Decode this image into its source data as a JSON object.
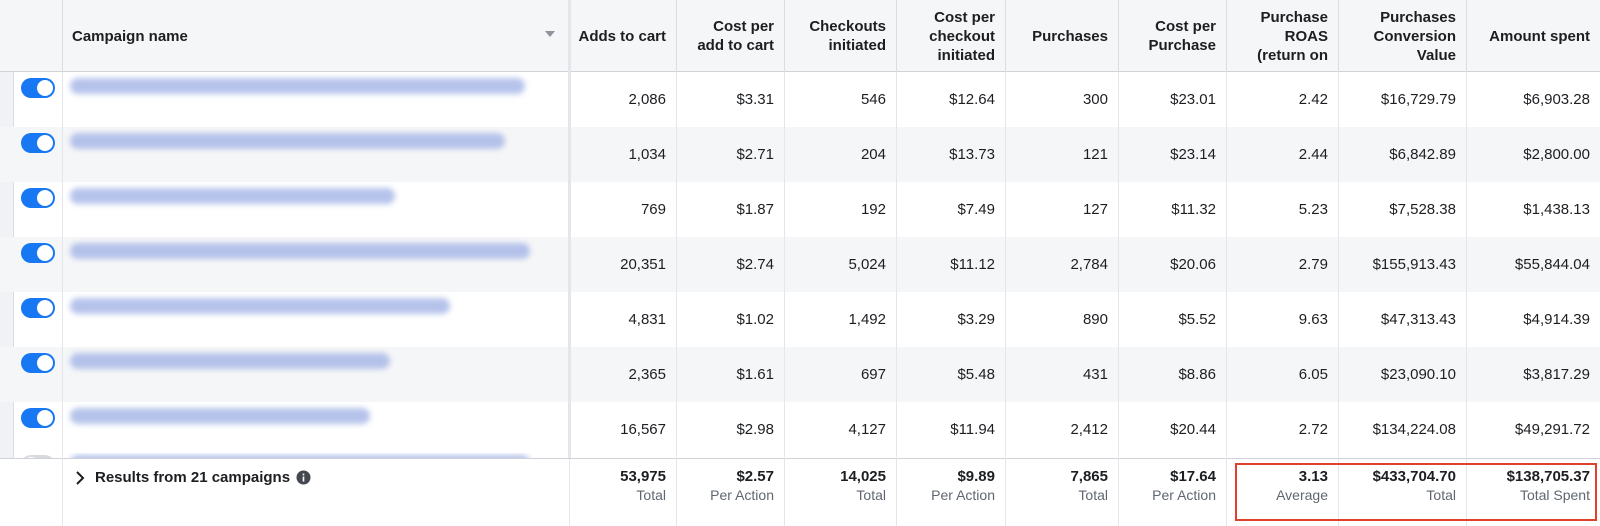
{
  "headers": {
    "campaign_name": "Campaign name",
    "adds_to_cart": [
      "Adds to cart"
    ],
    "cost_per_add_to_cart": [
      "Cost per",
      "add to cart"
    ],
    "checkouts_initiated": [
      "Checkouts",
      "initiated"
    ],
    "cost_per_checkout": [
      "Cost per",
      "checkout",
      "initiated"
    ],
    "purchases": [
      "Purchases"
    ],
    "cost_per_purchase": [
      "Cost per",
      "Purchase"
    ],
    "purchase_roas": [
      "Purchase",
      "ROAS",
      "(return on"
    ],
    "purchases_conversion_value": [
      "Purchases",
      "Conversion",
      "Value"
    ],
    "amount_spent": [
      "Amount spent"
    ]
  },
  "rows": [
    {
      "adds": "2,086",
      "cpa": "$3.31",
      "checkouts": "546",
      "cpc": "$12.64",
      "purchases": "300",
      "cpp": "$23.01",
      "roas": "2.42",
      "value": "$16,729.79",
      "spent": "$6,903.28"
    },
    {
      "adds": "1,034",
      "cpa": "$2.71",
      "checkouts": "204",
      "cpc": "$13.73",
      "purchases": "121",
      "cpp": "$23.14",
      "roas": "2.44",
      "value": "$6,842.89",
      "spent": "$2,800.00"
    },
    {
      "adds": "769",
      "cpa": "$1.87",
      "checkouts": "192",
      "cpc": "$7.49",
      "purchases": "127",
      "cpp": "$11.32",
      "roas": "5.23",
      "value": "$7,528.38",
      "spent": "$1,438.13"
    },
    {
      "adds": "20,351",
      "cpa": "$2.74",
      "checkouts": "5,024",
      "cpc": "$11.12",
      "purchases": "2,784",
      "cpp": "$20.06",
      "roas": "2.79",
      "value": "$155,913.43",
      "spent": "$55,844.04"
    },
    {
      "adds": "4,831",
      "cpa": "$1.02",
      "checkouts": "1,492",
      "cpc": "$3.29",
      "purchases": "890",
      "cpp": "$5.52",
      "roas": "9.63",
      "value": "$47,313.43",
      "spent": "$4,914.39"
    },
    {
      "adds": "2,365",
      "cpa": "$1.61",
      "checkouts": "697",
      "cpc": "$5.48",
      "purchases": "431",
      "cpp": "$8.86",
      "roas": "6.05",
      "value": "$23,090.10",
      "spent": "$3,817.29"
    },
    {
      "adds": "16,567",
      "cpa": "$2.98",
      "checkouts": "4,127",
      "cpc": "$11.94",
      "purchases": "2,412",
      "cpp": "$20.44",
      "roas": "2.72",
      "value": "$134,224.08",
      "spent": "$49,291.72"
    }
  ],
  "footer": {
    "results_label": "Results from 21 campaigns",
    "adds": {
      "value": "53,975",
      "label": "Total"
    },
    "cpa": {
      "value": "$2.57",
      "label": "Per Action"
    },
    "checkouts": {
      "value": "14,025",
      "label": "Total"
    },
    "cpc": {
      "value": "$9.89",
      "label": "Per Action"
    },
    "purchases": {
      "value": "7,865",
      "label": "Total"
    },
    "cpp": {
      "value": "$17.64",
      "label": "Per Action"
    },
    "roas": {
      "value": "3.13",
      "label": "Average"
    },
    "value": {
      "value": "$433,704.70",
      "label": "Total"
    },
    "spent": {
      "value": "$138,705.37",
      "label": "Total Spent"
    }
  },
  "colors": {
    "toggle_on": "#1877f2",
    "highlight": "#e1412c"
  },
  "icons": {
    "sort": "caret-down-icon",
    "expand": "chevron-right-icon",
    "info": "info-icon"
  }
}
